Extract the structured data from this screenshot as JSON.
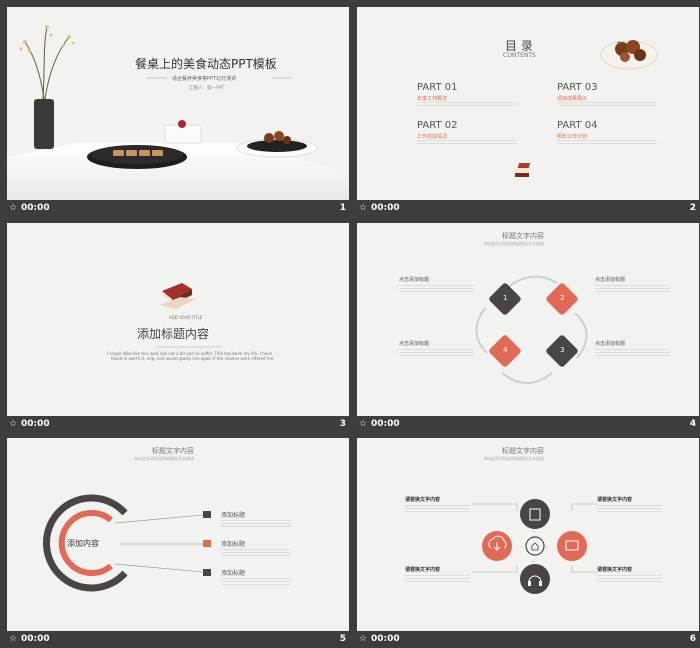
{
  "slides": [
    {
      "number": "1",
      "time": "00:00",
      "title": "餐桌上的美食动态PPT模板",
      "subtitle": "适合餐养美食等PPT幻灯演讲",
      "presenter": "汇报人：第一PPT"
    },
    {
      "number": "2",
      "time": "00:00",
      "title": "目 录",
      "title_en": "CONTENTS",
      "parts": [
        {
          "label": "PART 01",
          "sub": "年度工作概述"
        },
        {
          "label": "PART 02",
          "sub": "工作完成情况"
        },
        {
          "label": "PART 03",
          "sub": "项目成果展示"
        },
        {
          "label": "PART 04",
          "sub": "明年工作计划"
        }
      ]
    },
    {
      "number": "3",
      "time": "00:00",
      "small_en": "ADD YOUR TITLE",
      "title": "添加标题内容",
      "desc_line1": "I single alike like this well, but not a bit and so suffer. This has been my life. I have",
      "desc_line2": "found in worth it, ring, and would gladly live again if the chance were offered me."
    },
    {
      "number": "4",
      "time": "00:00",
      "title": "标题文字内容",
      "subtitle": "单击此处添加说明或图标文本描述",
      "items": [
        {
          "n": "1",
          "label": "点击添加标题"
        },
        {
          "n": "2",
          "label": "点击添加标题"
        },
        {
          "n": "3",
          "label": "点击添加标题"
        },
        {
          "n": "4",
          "label": "点击添加标题"
        }
      ]
    },
    {
      "number": "5",
      "time": "00:00",
      "title": "标题文字内容",
      "subtitle": "单击此处添加说明或图标文本描述",
      "center": "添加内容",
      "items": [
        "添加标题",
        "添加标题",
        "添加标题"
      ]
    },
    {
      "number": "6",
      "time": "00:00",
      "title": "标题文字内容",
      "subtitle": "单击此处添加说明或图标文本描述",
      "labels": [
        "请替换文字内容",
        "请替换文字内容",
        "请替换文字内容",
        "请替换文字内容"
      ]
    }
  ],
  "colors": {
    "accent": "#e06a55",
    "dark": "#4a4545",
    "bg": "#3d3d3d",
    "slide_bg": "#f2f2f0"
  }
}
